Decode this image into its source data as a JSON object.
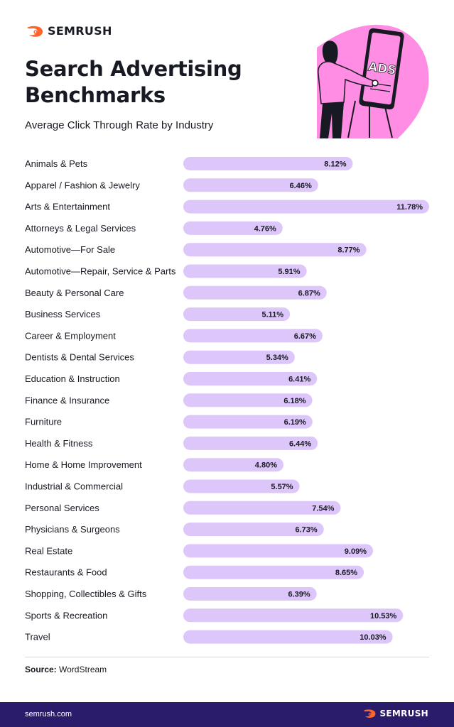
{
  "brand": {
    "name": "SEMRUSH",
    "accent": "#ff642d",
    "footer_bg": "#2b1b6b"
  },
  "header": {
    "title": "Search Advertising Benchmarks",
    "subtitle": "Average Click Through Rate by Industry"
  },
  "illustration": {
    "sign_text": "ADS",
    "pink": "#ff8de3"
  },
  "chart_data": {
    "type": "bar",
    "orientation": "horizontal",
    "categories": [
      "Animals & Pets",
      "Apparel / Fashion & Jewelry",
      "Arts & Entertainment",
      "Attorneys & Legal Services",
      "Automotive—For Sale",
      "Automotive—Repair, Service & Parts",
      "Beauty & Personal Care",
      "Business Services",
      "Career & Employment",
      "Dentists & Dental Services",
      "Education & Instruction",
      "Finance & Insurance",
      "Furniture",
      "Health & Fitness",
      "Home & Home Improvement",
      "Industrial & Commercial",
      "Personal Services",
      "Physicians & Surgeons",
      "Real Estate",
      "Restaurants & Food",
      "Shopping, Collectibles & Gifts",
      "Sports & Recreation",
      "Travel"
    ],
    "values": [
      8.12,
      6.46,
      11.78,
      4.76,
      8.77,
      5.91,
      6.87,
      5.11,
      6.67,
      5.34,
      6.41,
      6.18,
      6.19,
      6.44,
      4.8,
      5.57,
      7.54,
      6.73,
      9.09,
      8.65,
      6.39,
      10.53,
      10.03
    ],
    "labels": [
      "8.12%",
      "6.46%",
      "11.78%",
      "4.76%",
      "8.77%",
      "5.91%",
      "6.87%",
      "5.11%",
      "6.67%",
      "5.34%",
      "6.41%",
      "6.18%",
      "6.19%",
      "6.44%",
      "4.80%",
      "5.57%",
      "7.54%",
      "6.73%",
      "9.09%",
      "8.65%",
      "6.39%",
      "10.53%",
      "10.03%"
    ],
    "value_unit": "%",
    "xlim": [
      0,
      11.78
    ],
    "grid": false,
    "bar_color": "#ddc6fa"
  },
  "source": {
    "label": "Source:",
    "value": "WordStream"
  },
  "footer": {
    "url": "semrush.com",
    "brand": "SEMRUSH"
  }
}
